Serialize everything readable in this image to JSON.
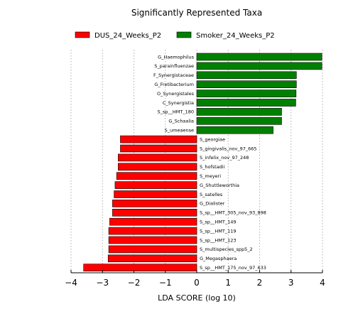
{
  "chart_data": {
    "type": "bar",
    "orientation": "horizontal",
    "title": "Significantly Represented Taxa",
    "xlabel": "LDA SCORE (log 10)",
    "xlim": [
      -4,
      4
    ],
    "xticks": [
      -4,
      -3,
      -2,
      -1,
      0,
      1,
      2,
      3,
      4
    ],
    "xtick_labels": [
      "−4",
      "−3",
      "−2",
      "−1",
      "0",
      "1",
      "2",
      "3",
      "4"
    ],
    "grid": "vertical-dotted",
    "legend_placement": "top",
    "series": [
      {
        "name": "DUS_24_Weeks_P2",
        "color": "#ff0000"
      },
      {
        "name": "Smoker_24_Weeks_P2",
        "color": "#008000"
      }
    ],
    "bars": [
      {
        "label": "G_Haemophilus",
        "value": 3.98,
        "series": 1
      },
      {
        "label": "S_parainfluenzae",
        "value": 3.98,
        "series": 1
      },
      {
        "label": "F_Synergistaceae",
        "value": 3.17,
        "series": 1
      },
      {
        "label": "G_Fretibacterium",
        "value": 3.17,
        "series": 1
      },
      {
        "label": "O_Synergistales",
        "value": 3.16,
        "series": 1
      },
      {
        "label": "C_Synergistia",
        "value": 3.15,
        "series": 1
      },
      {
        "label": "S_sp__HMT_180",
        "value": 2.7,
        "series": 1
      },
      {
        "label": "G_Schaalia",
        "value": 2.7,
        "series": 1
      },
      {
        "label": "S_umeaense",
        "value": 2.43,
        "series": 1
      },
      {
        "label": "S_georgiae",
        "value": -2.43,
        "series": 0
      },
      {
        "label": "S_gingivalis_nov_97_665",
        "value": -2.43,
        "series": 0
      },
      {
        "label": "S_infelix_nov_97_248",
        "value": -2.5,
        "series": 0
      },
      {
        "label": "S_hofstadii",
        "value": -2.5,
        "series": 0
      },
      {
        "label": "S_meyeri",
        "value": -2.55,
        "series": 0
      },
      {
        "label": "G_Shuttleworthia",
        "value": -2.6,
        "series": 0
      },
      {
        "label": "S_satelles",
        "value": -2.63,
        "series": 0
      },
      {
        "label": "G_Dialister",
        "value": -2.68,
        "series": 0
      },
      {
        "label": "S_sp__HMT_305_nov_93_898",
        "value": -2.68,
        "series": 0
      },
      {
        "label": "S_sp__HMT_149",
        "value": -2.77,
        "series": 0
      },
      {
        "label": "S_sp__HMT_119",
        "value": -2.8,
        "series": 0
      },
      {
        "label": "S_sp__HMT_123",
        "value": -2.8,
        "series": 0
      },
      {
        "label": "S_multispecies_spp5_2",
        "value": -2.8,
        "series": 0
      },
      {
        "label": "G_Megasphaera",
        "value": -2.82,
        "series": 0
      },
      {
        "label": "S_sp__HMT_175_nov_97_633",
        "value": -3.6,
        "series": 0
      }
    ]
  }
}
